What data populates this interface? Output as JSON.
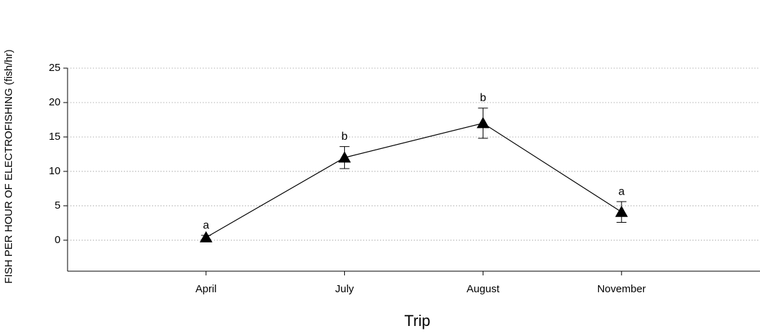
{
  "chart_data": {
    "type": "line",
    "x_label": "Trip",
    "y_label": "FISH PER HOUR OF ELECTROFISHING (fish/hr)",
    "categories": [
      "April",
      "July",
      "August",
      "November"
    ],
    "series": [
      {
        "color": "#000000",
        "values": [
          0.4,
          12,
          17,
          4.1
        ],
        "errors": [
          0.3,
          1.6,
          2.2,
          1.5
        ]
      }
    ],
    "annotations": [
      "a",
      "b",
      "b",
      "a"
    ],
    "ylim": [
      -4.5,
      25
    ],
    "yticks": [
      0,
      5,
      10,
      15,
      20,
      25
    ],
    "grid": true
  }
}
